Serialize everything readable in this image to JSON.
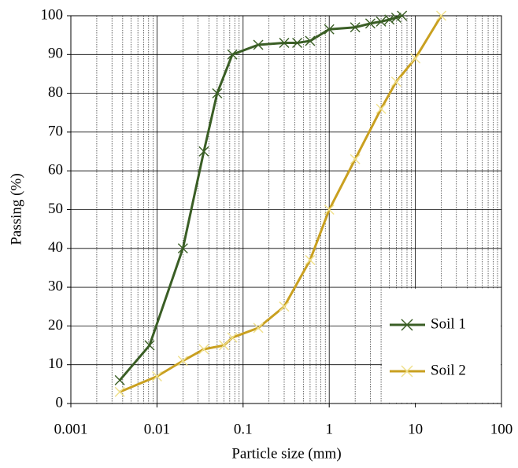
{
  "chart_data": {
    "type": "line",
    "x_label": "Particle size (mm)",
    "y_label": "Passing (%)",
    "xscale": "log",
    "xlim": [
      0.001,
      100
    ],
    "xticks": [
      0.001,
      0.01,
      0.1,
      1,
      10,
      100
    ],
    "ylim": [
      0,
      100
    ],
    "yticks": [
      0,
      10,
      20,
      30,
      40,
      50,
      60,
      70,
      80,
      90,
      100
    ],
    "grid": true,
    "legend": "lower right",
    "series": [
      {
        "name": "Soil 1",
        "color": "#3a5e25",
        "marker_color": "#3a5e25",
        "x": [
          0.0037,
          0.0082,
          0.02,
          0.035,
          0.05,
          0.075,
          0.15,
          0.3,
          0.425,
          0.6,
          1,
          2,
          3,
          4,
          5,
          6,
          7
        ],
        "values": [
          6,
          15,
          40,
          65,
          80,
          90,
          92.5,
          93,
          93,
          93.5,
          96.5,
          97,
          98,
          98.5,
          99,
          99.5,
          100
        ]
      },
      {
        "name": "Soil 2",
        "color": "#c9a020",
        "marker_color": "#f0e08a",
        "x": [
          0.0037,
          0.01,
          0.02,
          0.035,
          0.06,
          0.075,
          0.15,
          0.3,
          0.6,
          1,
          2,
          4,
          6,
          10,
          20
        ],
        "values": [
          3,
          7,
          11,
          14,
          15,
          17,
          19.5,
          25,
          37,
          50,
          63,
          76,
          83,
          89,
          100
        ]
      }
    ]
  }
}
